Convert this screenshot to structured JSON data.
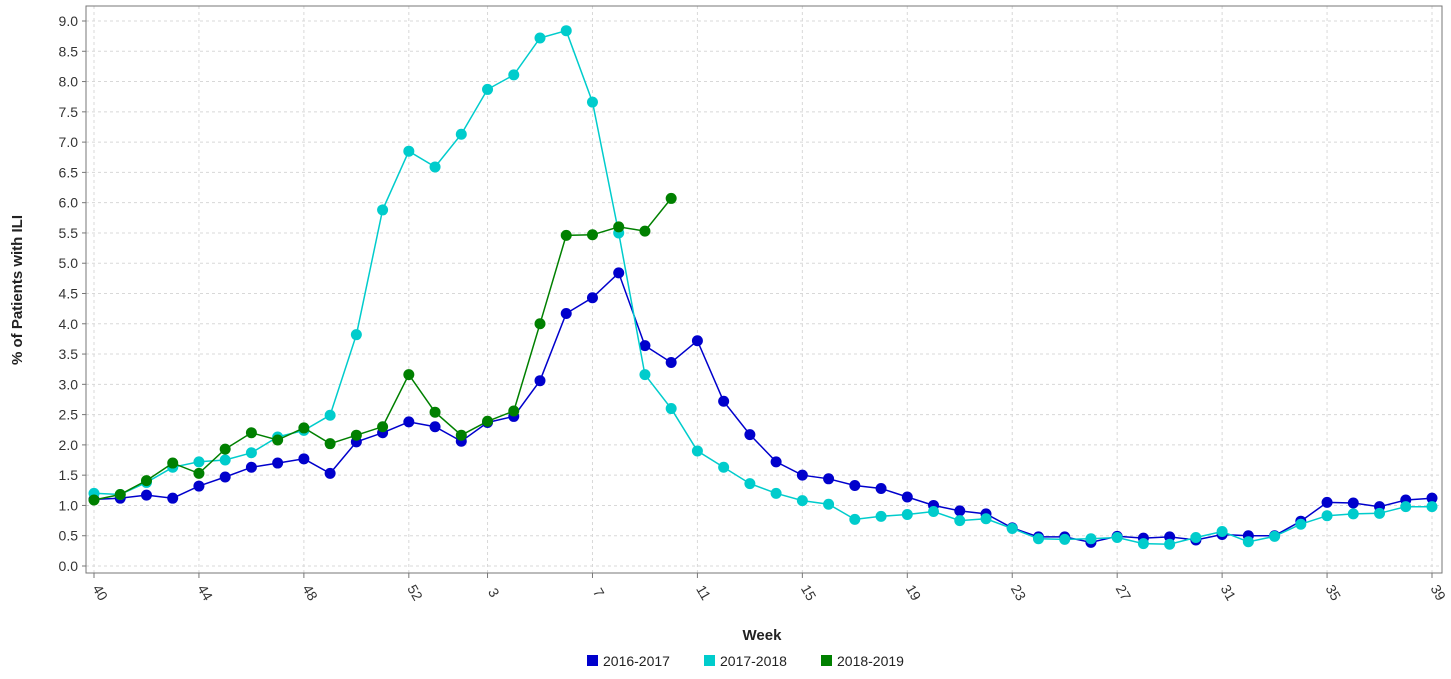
{
  "chart_data": {
    "type": "line",
    "title": "",
    "xlabel": "Week",
    "ylabel": "% of Patients with ILI",
    "ylim": [
      0,
      9.1
    ],
    "y_ticks": [
      0.0,
      0.5,
      1.0,
      1.5,
      2.0,
      2.5,
      3.0,
      3.5,
      4.0,
      4.5,
      5.0,
      5.5,
      6.0,
      6.5,
      7.0,
      7.5,
      8.0,
      8.5,
      9.0
    ],
    "y_tick_labels": [
      "0.0",
      "0.5",
      "1.0",
      "1.5",
      "2.0",
      "2.5",
      "3.0",
      "3.5",
      "4.0",
      "4.5",
      "5.0",
      "5.5",
      "6.0",
      "6.5",
      "7.0",
      "7.5",
      "8.0",
      "8.5",
      "9.0"
    ],
    "x": [
      "40",
      "41",
      "42",
      "43",
      "44",
      "45",
      "46",
      "47",
      "48",
      "49",
      "50",
      "51",
      "52",
      "1",
      "2",
      "3",
      "4",
      "5",
      "6",
      "7",
      "8",
      "9",
      "10",
      "11",
      "12",
      "13",
      "14",
      "15",
      "16",
      "17",
      "18",
      "19",
      "20",
      "21",
      "22",
      "23",
      "24",
      "25",
      "26",
      "27",
      "28",
      "29",
      "30",
      "31",
      "32",
      "33",
      "34",
      "35",
      "36",
      "37",
      "38",
      "39"
    ],
    "x_tick_labels": [
      "40",
      "44",
      "48",
      "52",
      "3",
      "7",
      "11",
      "15",
      "19",
      "23",
      "27",
      "31",
      "35",
      "39"
    ],
    "grid": true,
    "legend_position": "bottom",
    "series": [
      {
        "name": "2016-2017",
        "color": "#0000cc",
        "values": [
          1.1,
          1.12,
          1.17,
          1.12,
          1.32,
          1.47,
          1.63,
          1.7,
          1.77,
          1.53,
          2.05,
          2.2,
          2.38,
          2.3,
          2.06,
          2.37,
          2.47,
          3.06,
          4.17,
          4.43,
          4.84,
          3.64,
          3.36,
          3.72,
          2.72,
          2.17,
          1.72,
          1.5,
          1.44,
          1.33,
          1.28,
          1.14,
          1.0,
          0.91,
          0.86,
          0.63,
          0.48,
          0.48,
          0.39,
          0.49,
          0.46,
          0.48,
          0.43,
          0.52,
          0.5,
          0.5,
          0.74,
          1.05,
          1.04,
          0.98,
          1.09,
          1.12
        ]
      },
      {
        "name": "2017-2018",
        "color": "#00cccc",
        "values": [
          1.2,
          1.18,
          1.38,
          1.63,
          1.72,
          1.75,
          1.87,
          2.13,
          2.24,
          2.49,
          3.82,
          5.88,
          6.85,
          6.59,
          7.13,
          7.87,
          8.11,
          8.72,
          8.84,
          7.66,
          5.5,
          3.16,
          2.6,
          1.9,
          1.63,
          1.36,
          1.2,
          1.08,
          1.02,
          0.77,
          0.82,
          0.85,
          0.9,
          0.75,
          0.78,
          0.62,
          0.45,
          0.44,
          0.45,
          0.47,
          0.37,
          0.36,
          0.47,
          0.57,
          0.4,
          0.49,
          0.69,
          0.83,
          0.86,
          0.87,
          0.98,
          0.98
        ]
      },
      {
        "name": "2018-2019",
        "color": "#008000",
        "values": [
          1.09,
          1.18,
          1.41,
          1.7,
          1.53,
          1.93,
          2.2,
          2.08,
          2.28,
          2.02,
          2.16,
          2.3,
          3.16,
          2.54,
          2.16,
          2.39,
          2.56,
          4.0,
          5.46,
          5.47,
          5.6,
          5.53,
          6.07,
          null,
          null,
          null,
          null,
          null,
          null,
          null,
          null,
          null,
          null,
          null,
          null,
          null,
          null,
          null,
          null,
          null,
          null,
          null,
          null,
          null,
          null,
          null,
          null,
          null,
          null,
          null,
          null,
          null
        ]
      }
    ]
  }
}
